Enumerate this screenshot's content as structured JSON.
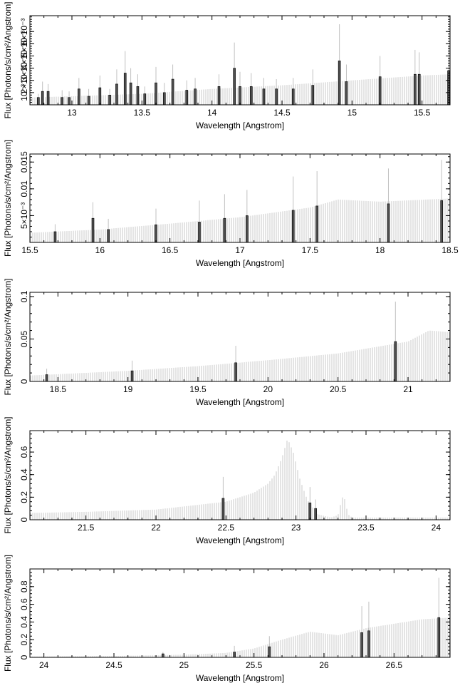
{
  "colors": {
    "model": "#c8c8c8",
    "error": "#c0c0c0",
    "data": "#505050",
    "data_edge": "#000000",
    "axis": "#000000"
  },
  "chart_data": [
    {
      "type": "bar",
      "xlabel": "Wavelength [Angstrom]",
      "ylabel": "Flux [Photons/s/cm²/Angstrom]",
      "xlim": [
        12.7,
        15.7
      ],
      "ylim": [
        0,
        0.0073
      ],
      "xticks": [
        13,
        13.5,
        14,
        14.5,
        15,
        15.5
      ],
      "xtick_labels": [
        "13",
        "13.5",
        "14",
        "14.5",
        "15",
        "15.5"
      ],
      "yticks": [
        0.001,
        0.002,
        0.003,
        0.004,
        0.005,
        0.006
      ],
      "ytick_labels": [
        "10⁻³",
        "2×10⁻³",
        "3×10⁻³",
        "4×10⁻³",
        "5×10⁻³",
        "6×10⁻³"
      ],
      "model": {
        "x": [
          12.7,
          13.0,
          13.5,
          14.0,
          14.5,
          15.0,
          15.5,
          15.7
        ],
        "y": [
          0.0006,
          0.0007,
          0.0009,
          0.0013,
          0.0016,
          0.002,
          0.0024,
          0.0025
        ]
      },
      "data": [
        {
          "x": 12.76,
          "y": 0.0006,
          "err": 0.0003
        },
        {
          "x": 12.79,
          "y": 0.0011,
          "err": 0.0008
        },
        {
          "x": 12.83,
          "y": 0.0011,
          "err": 0.0006
        },
        {
          "x": 12.93,
          "y": 0.0006,
          "err": 0.0006
        },
        {
          "x": 12.98,
          "y": 0.0006,
          "err": 0.0005
        },
        {
          "x": 13.05,
          "y": 0.0013,
          "err": 0.0009
        },
        {
          "x": 13.12,
          "y": 0.0007,
          "err": 0.0006
        },
        {
          "x": 13.2,
          "y": 0.0014,
          "err": 0.001
        },
        {
          "x": 13.27,
          "y": 0.0008,
          "err": 0.0005
        },
        {
          "x": 13.32,
          "y": 0.0017,
          "err": 0.0012
        },
        {
          "x": 13.38,
          "y": 0.0026,
          "err": 0.0018
        },
        {
          "x": 13.42,
          "y": 0.0018,
          "err": 0.0012
        },
        {
          "x": 13.47,
          "y": 0.0015,
          "err": 0.001
        },
        {
          "x": 13.52,
          "y": 0.0009,
          "err": 0.0006
        },
        {
          "x": 13.6,
          "y": 0.0018,
          "err": 0.0013
        },
        {
          "x": 13.66,
          "y": 0.001,
          "err": 0.0008
        },
        {
          "x": 13.72,
          "y": 0.0021,
          "err": 0.0012
        },
        {
          "x": 13.82,
          "y": 0.0012,
          "err": 0.0008
        },
        {
          "x": 13.88,
          "y": 0.0013,
          "err": 0.0009
        },
        {
          "x": 14.05,
          "y": 0.0015,
          "err": 0.001
        },
        {
          "x": 14.16,
          "y": 0.003,
          "err": 0.0021
        },
        {
          "x": 14.2,
          "y": 0.0015,
          "err": 0.0012
        },
        {
          "x": 14.28,
          "y": 0.0015,
          "err": 0.0011
        },
        {
          "x": 14.37,
          "y": 0.0013,
          "err": 0.0009
        },
        {
          "x": 14.46,
          "y": 0.0013,
          "err": 0.0008
        },
        {
          "x": 14.58,
          "y": 0.0013,
          "err": 0.0009
        },
        {
          "x": 14.72,
          "y": 0.0016,
          "err": 0.0013
        },
        {
          "x": 14.91,
          "y": 0.0036,
          "err": 0.003
        },
        {
          "x": 14.96,
          "y": 0.0019,
          "err": 0.0014
        },
        {
          "x": 15.2,
          "y": 0.0023,
          "err": 0.0017
        },
        {
          "x": 15.45,
          "y": 0.0025,
          "err": 0.002
        },
        {
          "x": 15.48,
          "y": 0.0025,
          "err": 0.0018
        },
        {
          "x": 15.69,
          "y": 0.0028,
          "err": 0.002
        }
      ]
    },
    {
      "type": "bar",
      "xlabel": "Wavelength [Angstrom]",
      "ylabel": "Flux [Photons/s/cm²/Angstrom]",
      "xlim": [
        15.5,
        18.5
      ],
      "ylim": [
        0,
        0.0165
      ],
      "xticks": [
        15.5,
        16,
        16.5,
        17,
        17.5,
        18,
        18.5
      ],
      "xtick_labels": [
        "15.5",
        "16",
        "16.5",
        "17",
        "17.5",
        "18",
        "18.5"
      ],
      "yticks": [
        0.005,
        0.01,
        0.015
      ],
      "ytick_labels": [
        "5×10⁻³",
        "0.01",
        "0.015"
      ],
      "model": {
        "x": [
          15.5,
          16.0,
          16.5,
          17.0,
          17.5,
          17.7,
          18.0,
          18.5
        ],
        "y": [
          0.0018,
          0.0024,
          0.0035,
          0.0047,
          0.0065,
          0.008,
          0.0076,
          0.0082
        ]
      },
      "data": [
        {
          "x": 15.68,
          "y": 0.002,
          "err": 0.0014
        },
        {
          "x": 15.95,
          "y": 0.0045,
          "err": 0.003
        },
        {
          "x": 16.06,
          "y": 0.0024,
          "err": 0.002
        },
        {
          "x": 16.4,
          "y": 0.0033,
          "err": 0.003
        },
        {
          "x": 16.71,
          "y": 0.0038,
          "err": 0.004
        },
        {
          "x": 16.89,
          "y": 0.0045,
          "err": 0.0045
        },
        {
          "x": 17.05,
          "y": 0.005,
          "err": 0.0048
        },
        {
          "x": 17.38,
          "y": 0.006,
          "err": 0.0063
        },
        {
          "x": 17.55,
          "y": 0.0068,
          "err": 0.0065
        },
        {
          "x": 18.06,
          "y": 0.0072,
          "err": 0.0066
        },
        {
          "x": 18.44,
          "y": 0.0078,
          "err": 0.0076
        }
      ]
    },
    {
      "type": "bar",
      "xlabel": "Wavelength [Angstrom]",
      "ylabel": "Flux [Photons/s/cm²/Angstrom]",
      "xlim": [
        18.3,
        21.3
      ],
      "ylim": [
        0,
        0.105
      ],
      "xticks": [
        18.5,
        19,
        19.5,
        20,
        20.5,
        21
      ],
      "xtick_labels": [
        "18.5",
        "19",
        "19.5",
        "20",
        "20.5",
        "21"
      ],
      "yticks": [
        0,
        0.05,
        0.1
      ],
      "ytick_labels": [
        "0",
        "0.05",
        "0.1"
      ],
      "model": {
        "x": [
          18.3,
          18.5,
          19.0,
          19.5,
          20.0,
          20.5,
          21.0,
          21.15,
          21.3
        ],
        "y": [
          0.007,
          0.0085,
          0.0125,
          0.018,
          0.025,
          0.033,
          0.047,
          0.06,
          0.058
        ]
      },
      "data": [
        {
          "x": 18.42,
          "y": 0.008,
          "err": 0.007
        },
        {
          "x": 19.03,
          "y": 0.0125,
          "err": 0.012
        },
        {
          "x": 19.77,
          "y": 0.022,
          "err": 0.02
        },
        {
          "x": 20.91,
          "y": 0.047,
          "err": 0.047
        }
      ]
    },
    {
      "type": "bar",
      "xlabel": "Wavelength [Angstrom]",
      "ylabel": "Flux [Photons/s/cm²/Angstrom]",
      "xlim": [
        21.1,
        24.1
      ],
      "ylim": [
        0,
        0.79
      ],
      "xticks": [
        21.5,
        22,
        22.5,
        23,
        23.5,
        24
      ],
      "xtick_labels": [
        "21.5",
        "22",
        "22.5",
        "23",
        "23.5",
        "24"
      ],
      "yticks": [
        0,
        0.2,
        0.4,
        0.6
      ],
      "ytick_labels": [
        "0",
        "0.2",
        "0.4",
        "0.6"
      ],
      "model": {
        "x": [
          21.1,
          21.5,
          22.0,
          22.5,
          22.7,
          22.8,
          22.85,
          22.9,
          22.94,
          22.98,
          23.03,
          23.08,
          23.15,
          23.25,
          23.3,
          23.33,
          23.35,
          23.37,
          23.4,
          23.5,
          24.1
        ],
        "y": [
          0.06,
          0.07,
          0.09,
          0.16,
          0.24,
          0.32,
          0.4,
          0.55,
          0.72,
          0.6,
          0.35,
          0.18,
          0.05,
          0.02,
          0.04,
          0.2,
          0.18,
          0.05,
          0.02,
          0.02,
          0.02
        ]
      },
      "data": [
        {
          "x": 22.48,
          "y": 0.19,
          "err": 0.19
        },
        {
          "x": 23.1,
          "y": 0.15,
          "err": 0.14
        },
        {
          "x": 23.14,
          "y": 0.1,
          "err": 0.08
        }
      ]
    },
    {
      "type": "bar",
      "xlabel": "Wavelength [Angstrom]",
      "ylabel": "Flux [Photons/s/cm²/Angstrom]",
      "xlim": [
        23.9,
        26.9
      ],
      "ylim": [
        0,
        1.0
      ],
      "xticks": [
        24,
        24.5,
        25,
        25.5,
        26,
        26.5
      ],
      "xtick_labels": [
        "24",
        "24.5",
        "25",
        "25.5",
        "26",
        "26.5"
      ],
      "yticks": [
        0,
        0.2,
        0.4,
        0.6,
        0.8
      ],
      "ytick_labels": [
        "0",
        "0.2",
        "0.4",
        "0.6",
        "0.8"
      ],
      "model": {
        "x": [
          23.9,
          24.5,
          25.0,
          25.3,
          25.5,
          25.7,
          25.9,
          26.1,
          26.3,
          26.5,
          26.7,
          26.9
        ],
        "y": [
          0.01,
          0.015,
          0.03,
          0.05,
          0.1,
          0.2,
          0.29,
          0.25,
          0.33,
          0.38,
          0.43,
          0.45
        ]
      },
      "data": [
        {
          "x": 24.85,
          "y": 0.04,
          "err": 0.02
        },
        {
          "x": 25.36,
          "y": 0.06,
          "err": 0.07
        },
        {
          "x": 25.61,
          "y": 0.12,
          "err": 0.12
        },
        {
          "x": 26.27,
          "y": 0.28,
          "err": 0.3
        },
        {
          "x": 26.32,
          "y": 0.3,
          "err": 0.33
        },
        {
          "x": 26.82,
          "y": 0.45,
          "err": 0.45
        }
      ]
    }
  ]
}
